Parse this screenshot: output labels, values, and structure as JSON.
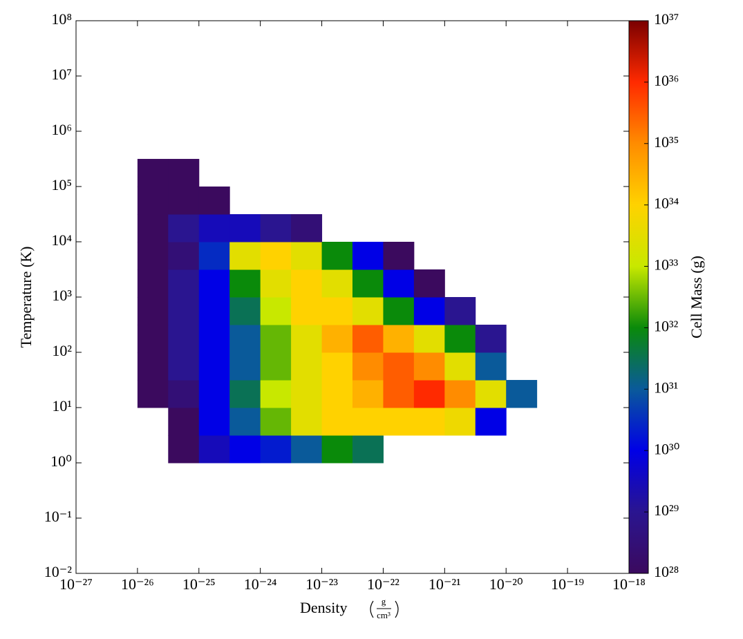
{
  "chart_data": {
    "type": "heatmap",
    "xlabel": "Density",
    "xlabel_unit": {
      "numerator": "g",
      "denominator": "cm³"
    },
    "ylabel": "Temperature  (K)",
    "xscale": "log",
    "yscale": "log",
    "xlim": [
      1e-27,
      1e-18
    ],
    "ylim": [
      0.01,
      100000000.0
    ],
    "xticks": [
      {
        "value": 1e-27,
        "label": "10⁻²⁷"
      },
      {
        "value": 1e-26,
        "label": "10⁻²⁶"
      },
      {
        "value": 1e-25,
        "label": "10⁻²⁵"
      },
      {
        "value": 1e-24,
        "label": "10⁻²⁴"
      },
      {
        "value": 1e-23,
        "label": "10⁻²³"
      },
      {
        "value": 1e-22,
        "label": "10⁻²²"
      },
      {
        "value": 1e-21,
        "label": "10⁻²¹"
      },
      {
        "value": 1e-20,
        "label": "10⁻²⁰"
      },
      {
        "value": 1e-19,
        "label": "10⁻¹⁹"
      },
      {
        "value": 1e-18,
        "label": "10⁻¹⁸"
      }
    ],
    "yticks": [
      {
        "value": 0.01,
        "label": "10⁻²"
      },
      {
        "value": 0.1,
        "label": "10⁻¹"
      },
      {
        "value": 1,
        "label": "10⁰"
      },
      {
        "value": 10,
        "label": "10¹"
      },
      {
        "value": 100,
        "label": "10²"
      },
      {
        "value": 1000,
        "label": "10³"
      },
      {
        "value": 10000,
        "label": "10⁴"
      },
      {
        "value": 100000,
        "label": "10⁵"
      },
      {
        "value": 1000000,
        "label": "10⁶"
      },
      {
        "value": 10000000,
        "label": "10⁷"
      },
      {
        "value": 100000000,
        "label": "10⁸"
      }
    ],
    "xbins": [
      1e-26,
      3.16e-26,
      1e-25,
      3.16e-25,
      1e-24,
      3.16e-24,
      1e-23,
      3.16e-23,
      1e-22,
      3.16e-22,
      1e-21,
      3.16e-21,
      1e-20,
      3.16e-20
    ],
    "ybins": [
      1,
      3.16,
      10,
      31.6,
      100,
      316,
      1000,
      3160,
      10000,
      31600,
      100000,
      316000
    ],
    "z": [
      [
        null,
        1e+28,
        3e+29,
        1e+30,
        2e+30,
        1e+31,
        1e+32,
        3e+31,
        null,
        null,
        null,
        null,
        null
      ],
      [
        null,
        1e+28,
        1e+30,
        1e+31,
        3e+32,
        3e+33,
        1e+34,
        1e+34,
        1e+34,
        1e+34,
        5e+33,
        1e+30,
        null
      ],
      [
        1e+28,
        3e+28,
        1e+30,
        3e+31,
        1e+33,
        3e+33,
        1e+34,
        3e+34,
        3e+35,
        1e+36,
        1e+35,
        3e+33,
        1e+31
      ],
      [
        1e+28,
        1e+29,
        1e+30,
        1e+31,
        3e+32,
        3e+33,
        1e+34,
        1e+35,
        3e+35,
        1e+35,
        3e+33,
        1e+31,
        null
      ],
      [
        1e+28,
        1e+29,
        1e+30,
        1e+31,
        3e+32,
        3e+33,
        3e+34,
        3e+35,
        3e+34,
        3e+33,
        1e+32,
        1e+29,
        null
      ],
      [
        1e+28,
        1e+29,
        1e+30,
        3e+31,
        1e+33,
        1e+34,
        1e+34,
        3e+33,
        1e+32,
        1e+30,
        1e+29,
        null,
        null
      ],
      [
        1e+28,
        1e+29,
        1e+30,
        1e+32,
        3e+33,
        1e+34,
        3e+33,
        1e+32,
        1e+30,
        1e+28,
        null,
        null,
        null
      ],
      [
        1e+28,
        3e+28,
        3e+30,
        3e+33,
        1e+34,
        3e+33,
        1e+32,
        1e+30,
        1e+28,
        null,
        null,
        null,
        null
      ],
      [
        1e+28,
        1e+29,
        3e+29,
        3e+29,
        1e+29,
        3e+28,
        null,
        null,
        null,
        null,
        null,
        null,
        null
      ],
      [
        1e+28,
        1e+28,
        1e+28,
        null,
        null,
        null,
        null,
        null,
        null,
        null,
        null,
        null,
        null
      ],
      [
        1e+28,
        1e+28,
        null,
        null,
        null,
        null,
        null,
        null,
        null,
        null,
        null,
        null,
        null
      ]
    ],
    "colorbar": {
      "label": "Cell Mass  (g)",
      "lim": [
        1e+28,
        1e+37
      ],
      "ticks": [
        {
          "value": 1e+28,
          "label": "10²⁸"
        },
        {
          "value": 1e+29,
          "label": "10²⁹"
        },
        {
          "value": 1e+30,
          "label": "10³⁰"
        },
        {
          "value": 1e+31,
          "label": "10³¹"
        },
        {
          "value": 1e+32,
          "label": "10³²"
        },
        {
          "value": 1e+33,
          "label": "10³³"
        },
        {
          "value": 1e+34,
          "label": "10³⁴"
        },
        {
          "value": 1e+35,
          "label": "10³⁵"
        },
        {
          "value": 1e+36,
          "label": "10³⁶"
        },
        {
          "value": 1e+37,
          "label": "10³⁷"
        }
      ],
      "colors": [
        "#3b0a5e",
        "#2a1590",
        "#0000e6",
        "#0a5a9a",
        "#0a8a0a",
        "#c8e800",
        "#ffd200",
        "#ff8c00",
        "#ff2a00",
        "#7a0000"
      ]
    }
  }
}
